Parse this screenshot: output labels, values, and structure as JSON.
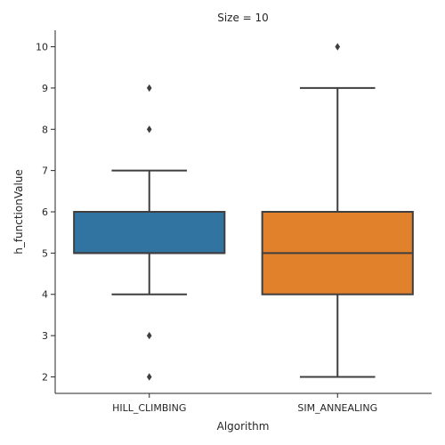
{
  "chart_data": {
    "type": "box",
    "title": "Size = 10",
    "xlabel": "Algorithm",
    "ylabel": "h_functionValue",
    "categories": [
      "HILL_CLIMBING",
      "SIM_ANNEALING"
    ],
    "ylim": [
      1.6,
      10.4
    ],
    "yticks": [
      2,
      3,
      4,
      5,
      6,
      7,
      8,
      9,
      10
    ],
    "grid": false,
    "boxes": [
      {
        "category": "HILL_CLIMBING",
        "color": "#3274a1",
        "whisker_low": 4,
        "q1": 5,
        "median": 5,
        "q3": 6,
        "whisker_high": 7,
        "outliers": [
          2,
          3,
          8,
          9
        ]
      },
      {
        "category": "SIM_ANNEALING",
        "color": "#e1812c",
        "whisker_low": 2,
        "q1": 4,
        "median": 5,
        "q3": 6,
        "whisker_high": 9,
        "outliers": [
          10
        ]
      }
    ],
    "line_color": "#3f3f3f"
  }
}
